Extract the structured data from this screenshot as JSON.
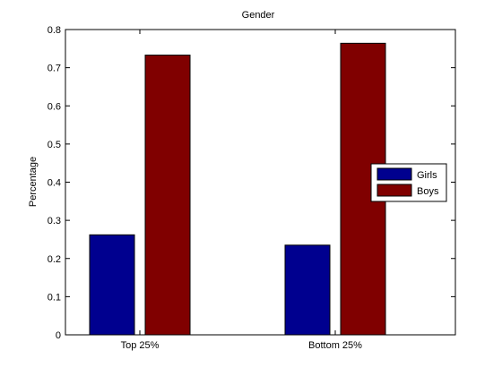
{
  "chart_data": {
    "type": "bar",
    "title": "Gender",
    "xlabel": "",
    "ylabel": "Percentage",
    "categories": [
      "Top 25%",
      "Bottom 25%"
    ],
    "series": [
      {
        "name": "Girls",
        "values": [
          0.262,
          0.235
        ],
        "color": "#00008f"
      },
      {
        "name": "Boys",
        "values": [
          0.733,
          0.764
        ],
        "color": "#800000"
      }
    ],
    "ylim": [
      0,
      0.8
    ],
    "yticks": [
      "0",
      "0.1",
      "0.2",
      "0.3",
      "0.4",
      "0.5",
      "0.6",
      "0.7",
      "0.8"
    ],
    "grid": false,
    "legend_position": "right"
  }
}
